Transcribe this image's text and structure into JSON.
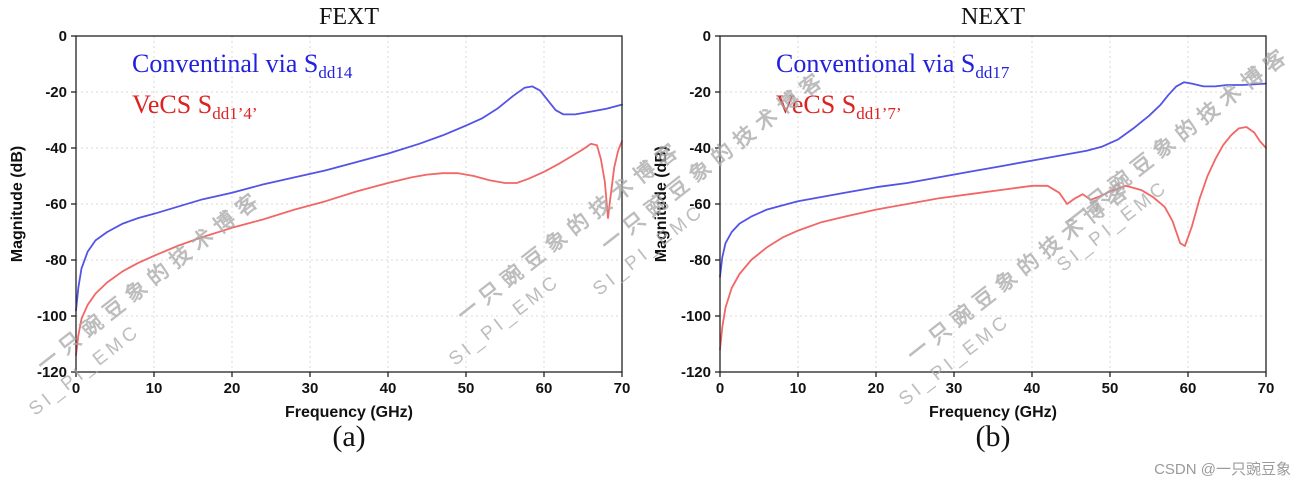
{
  "watermark": {
    "line1": "一只豌豆象的技术博客",
    "line2": "SI_PI_EMC",
    "color": "#a8a8a8",
    "credit": "CSDN @一只豌豆象"
  },
  "chart_data": [
    {
      "type": "line",
      "title": "FEXT",
      "sublabel": "(a)",
      "xlabel": "Frequency (GHz)",
      "ylabel": "Magnitude (dB)",
      "xlim": [
        0,
        70
      ],
      "ylim": [
        -120,
        0
      ],
      "xticks": [
        0,
        10,
        20,
        30,
        40,
        50,
        60,
        70
      ],
      "yticks": [
        0,
        -20,
        -40,
        -60,
        -80,
        -100,
        -120
      ],
      "grid": true,
      "legend_position": "top-left-inside",
      "legend": [
        {
          "text": "Conventinal via S",
          "sub": "dd14",
          "color": "#2222dd"
        },
        {
          "text": "VeCS S",
          "sub": "dd1’4’",
          "color": "#dd2222"
        }
      ],
      "series": [
        {
          "name": "Conventional via Sdd14",
          "color": "#5353e6",
          "points": [
            [
              0,
              -98
            ],
            [
              0.3,
              -90
            ],
            [
              0.7,
              -83
            ],
            [
              1.5,
              -77
            ],
            [
              2.5,
              -73
            ],
            [
              4,
              -70
            ],
            [
              6,
              -67
            ],
            [
              8,
              -65
            ],
            [
              10,
              -63.5
            ],
            [
              13,
              -61
            ],
            [
              16,
              -58.5
            ],
            [
              20,
              -56
            ],
            [
              24,
              -53
            ],
            [
              28,
              -50.5
            ],
            [
              32,
              -48
            ],
            [
              36,
              -45
            ],
            [
              40,
              -42
            ],
            [
              44,
              -38.5
            ],
            [
              47,
              -35.5
            ],
            [
              50,
              -32
            ],
            [
              52,
              -29.5
            ],
            [
              54,
              -26
            ],
            [
              56,
              -21.5
            ],
            [
              57.5,
              -18.5
            ],
            [
              58.5,
              -18
            ],
            [
              59.5,
              -19.5
            ],
            [
              60.5,
              -23
            ],
            [
              61.5,
              -26.5
            ],
            [
              62.5,
              -28
            ],
            [
              64,
              -28
            ],
            [
              66,
              -27
            ],
            [
              68,
              -26
            ],
            [
              70,
              -24.5
            ]
          ]
        },
        {
          "name": "VeCS Sdd1'4'",
          "color": "#f26666",
          "points": [
            [
              0,
              -114
            ],
            [
              0.3,
              -107
            ],
            [
              0.7,
              -101
            ],
            [
              1.5,
              -96
            ],
            [
              2.5,
              -92
            ],
            [
              4,
              -88
            ],
            [
              6,
              -84
            ],
            [
              8,
              -81
            ],
            [
              10,
              -78.5
            ],
            [
              13,
              -75
            ],
            [
              16,
              -72
            ],
            [
              20,
              -68.5
            ],
            [
              24,
              -65.5
            ],
            [
              28,
              -62
            ],
            [
              32,
              -59
            ],
            [
              36,
              -55.5
            ],
            [
              40,
              -52.5
            ],
            [
              43,
              -50.5
            ],
            [
              45,
              -49.5
            ],
            [
              47,
              -49
            ],
            [
              49,
              -49
            ],
            [
              51,
              -50
            ],
            [
              53,
              -51.5
            ],
            [
              55,
              -52.5
            ],
            [
              56.5,
              -52.5
            ],
            [
              58,
              -51
            ],
            [
              60,
              -48.5
            ],
            [
              62,
              -45.5
            ],
            [
              63.5,
              -43
            ],
            [
              65,
              -40.5
            ],
            [
              66,
              -38.5
            ],
            [
              66.8,
              -39
            ],
            [
              67.3,
              -44
            ],
            [
              67.8,
              -52
            ],
            [
              68.2,
              -65
            ],
            [
              68.5,
              -58
            ],
            [
              69,
              -47
            ],
            [
              69.5,
              -41
            ],
            [
              70,
              -37.5
            ]
          ]
        }
      ]
    },
    {
      "type": "line",
      "title": "NEXT",
      "sublabel": "(b)",
      "xlabel": "Frequency (GHz)",
      "ylabel": "Magnitude (dB)",
      "xlim": [
        0,
        70
      ],
      "ylim": [
        -120,
        0
      ],
      "xticks": [
        0,
        10,
        20,
        30,
        40,
        50,
        60,
        70
      ],
      "yticks": [
        0,
        -20,
        -40,
        -60,
        -80,
        -100,
        -120
      ],
      "grid": true,
      "legend_position": "top-left-inside",
      "legend": [
        {
          "text": "Conventional via S",
          "sub": "dd17",
          "color": "#2222dd"
        },
        {
          "text": "VeCS S",
          "sub": "dd1’7’",
          "color": "#dd2222"
        }
      ],
      "series": [
        {
          "name": "Conventional via Sdd17",
          "color": "#5353e6",
          "points": [
            [
              0,
              -86
            ],
            [
              0.3,
              -79
            ],
            [
              0.7,
              -74
            ],
            [
              1.5,
              -70
            ],
            [
              2.5,
              -67
            ],
            [
              4,
              -64.5
            ],
            [
              6,
              -62
            ],
            [
              8,
              -60.5
            ],
            [
              10,
              -59
            ],
            [
              13,
              -57.5
            ],
            [
              16,
              -56
            ],
            [
              20,
              -54
            ],
            [
              24,
              -52.5
            ],
            [
              28,
              -50.5
            ],
            [
              32,
              -48.5
            ],
            [
              36,
              -46.5
            ],
            [
              40,
              -44.5
            ],
            [
              44,
              -42.5
            ],
            [
              47,
              -41
            ],
            [
              49,
              -39.5
            ],
            [
              51,
              -37
            ],
            [
              53,
              -33
            ],
            [
              55,
              -28.5
            ],
            [
              56.5,
              -24.5
            ],
            [
              57.5,
              -21
            ],
            [
              58.5,
              -18
            ],
            [
              59.5,
              -16.5
            ],
            [
              60.5,
              -17
            ],
            [
              62,
              -18
            ],
            [
              63.5,
              -18
            ],
            [
              65,
              -17.5
            ],
            [
              67,
              -17.5
            ],
            [
              70,
              -17
            ]
          ]
        },
        {
          "name": "VeCS Sdd1'7'",
          "color": "#f26666",
          "points": [
            [
              0,
              -112
            ],
            [
              0.3,
              -104
            ],
            [
              0.7,
              -97
            ],
            [
              1.5,
              -90
            ],
            [
              2.5,
              -85
            ],
            [
              4,
              -80
            ],
            [
              6,
              -75.5
            ],
            [
              8,
              -72
            ],
            [
              10,
              -69.5
            ],
            [
              13,
              -66.5
            ],
            [
              16,
              -64.5
            ],
            [
              20,
              -62
            ],
            [
              24,
              -60
            ],
            [
              28,
              -58
            ],
            [
              32,
              -56.5
            ],
            [
              36,
              -55
            ],
            [
              40,
              -53.5
            ],
            [
              42,
              -53.5
            ],
            [
              43.5,
              -56
            ],
            [
              44.5,
              -60
            ],
            [
              45.5,
              -58
            ],
            [
              46.5,
              -56.5
            ],
            [
              47.5,
              -58.5
            ],
            [
              48.5,
              -57.5
            ],
            [
              50,
              -55.5
            ],
            [
              52,
              -53.5
            ],
            [
              54,
              -55
            ],
            [
              55.5,
              -57.5
            ],
            [
              57,
              -61
            ],
            [
              58,
              -66
            ],
            [
              59,
              -74
            ],
            [
              59.6,
              -75
            ],
            [
              60.5,
              -68
            ],
            [
              61.5,
              -58
            ],
            [
              62.5,
              -50
            ],
            [
              63.5,
              -44
            ],
            [
              64.5,
              -39
            ],
            [
              65.5,
              -35.5
            ],
            [
              66.5,
              -33
            ],
            [
              67.5,
              -32.5
            ],
            [
              68.5,
              -34.5
            ],
            [
              69.2,
              -37.5
            ],
            [
              70,
              -40
            ]
          ]
        }
      ]
    }
  ]
}
